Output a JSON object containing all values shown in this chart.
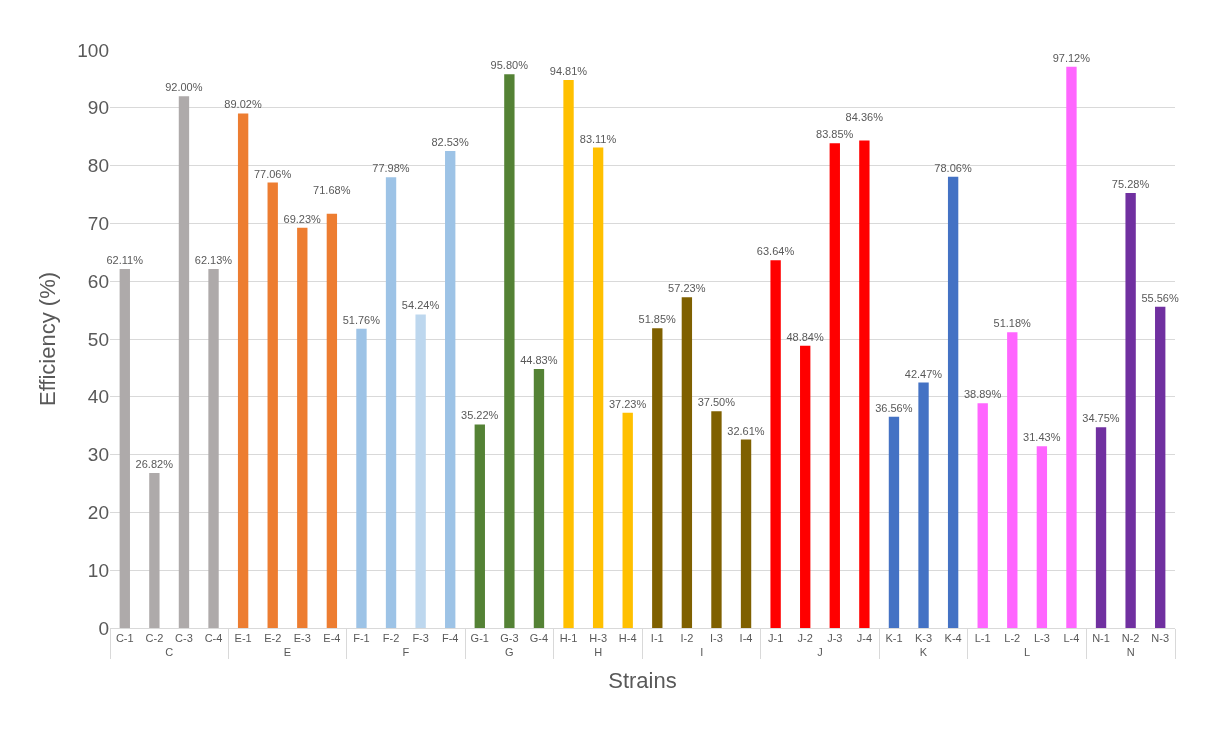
{
  "chart_data": {
    "type": "bar",
    "xlabel": "Strains",
    "ylabel": "Efficiency (%)",
    "categories": [
      "C-1",
      "C-2",
      "C-3",
      "C-4",
      "E-1",
      "E-2",
      "E-3",
      "E-4",
      "F-1",
      "F-2",
      "F-3",
      "F-4",
      "G-1",
      "G-3",
      "G-4",
      "H-1",
      "H-3",
      "H-4",
      "I-1",
      "I-2",
      "I-3",
      "I-4",
      "J-1",
      "J-2",
      "J-3",
      "J-4",
      "K-1",
      "K-3",
      "K-4",
      "L-1",
      "L-2",
      "L-3",
      "L-4",
      "N-1",
      "N-2",
      "N-3"
    ],
    "series": [
      {
        "name": "C",
        "color": "#aeaaaa",
        "values": [
          62.11,
          26.82,
          92.0,
          62.13,
          null,
          null,
          null,
          null,
          null,
          null,
          null,
          null,
          null,
          null,
          null,
          null,
          null,
          null,
          null,
          null,
          null,
          null,
          null,
          null,
          null,
          null,
          null,
          null,
          null,
          null,
          null,
          null,
          null,
          null,
          null,
          null
        ],
        "value_labels": [
          "62.11%",
          "26.82%",
          "92.00%",
          "62.13%",
          null,
          null,
          null,
          null,
          null,
          null,
          null,
          null,
          null,
          null,
          null,
          null,
          null,
          null,
          null,
          null,
          null,
          null,
          null,
          null,
          null,
          null,
          null,
          null,
          null,
          null,
          null,
          null,
          null,
          null,
          null,
          null
        ]
      },
      {
        "name": "E",
        "color": "#ed7d31",
        "values": [
          null,
          null,
          null,
          null,
          89.02,
          77.06,
          69.23,
          71.68,
          null,
          null,
          null,
          null,
          null,
          null,
          null,
          null,
          null,
          null,
          null,
          null,
          null,
          null,
          null,
          null,
          null,
          null,
          null,
          null,
          null,
          null,
          null,
          null,
          null,
          null,
          null,
          null
        ],
        "value_labels": [
          null,
          null,
          null,
          null,
          "89.02%",
          "77.06%",
          "69.23%",
          "71.68%",
          null,
          null,
          null,
          null,
          null,
          null,
          null,
          null,
          null,
          null,
          null,
          null,
          null,
          null,
          null,
          null,
          null,
          null,
          null,
          null,
          null,
          null,
          null,
          null,
          null,
          null,
          null,
          null
        ]
      },
      {
        "name": "F",
        "colors": [
          "#9dc3e6",
          "#9dc3e6",
          "#9dc3e6",
          "#9dc3e6",
          "#9dc3e6",
          "#9dc3e6",
          "#9dc3e6",
          "#9dc3e6",
          "#9dc3e6",
          "#9dc3e6",
          "#bdd7ee",
          "#9dc3e6",
          "#9dc3e6",
          "#9dc3e6",
          "#9dc3e6",
          "#9dc3e6",
          "#9dc3e6",
          "#9dc3e6",
          "#9dc3e6",
          "#9dc3e6",
          "#9dc3e6",
          "#9dc3e6",
          "#9dc3e6",
          "#9dc3e6",
          "#9dc3e6",
          "#9dc3e6",
          "#9dc3e6",
          "#9dc3e6",
          "#9dc3e6",
          "#9dc3e6",
          "#9dc3e6",
          "#9dc3e6",
          "#9dc3e6",
          "#9dc3e6",
          "#9dc3e6",
          "#9dc3e6"
        ],
        "values": [
          null,
          null,
          null,
          null,
          null,
          null,
          null,
          null,
          51.76,
          77.98,
          54.24,
          82.53,
          null,
          null,
          null,
          null,
          null,
          null,
          null,
          null,
          null,
          null,
          null,
          null,
          null,
          null,
          null,
          null,
          null,
          null,
          null,
          null,
          null,
          null,
          null,
          null
        ],
        "value_labels": [
          null,
          null,
          null,
          null,
          null,
          null,
          null,
          null,
          "51.76%",
          "77.98%",
          "54.24%",
          "82.53%",
          null,
          null,
          null,
          null,
          null,
          null,
          null,
          null,
          null,
          null,
          null,
          null,
          null,
          null,
          null,
          null,
          null,
          null,
          null,
          null,
          null,
          null,
          null,
          null
        ]
      },
      {
        "name": "G",
        "color": "#548235",
        "values": [
          null,
          null,
          null,
          null,
          null,
          null,
          null,
          null,
          null,
          null,
          null,
          null,
          35.22,
          95.8,
          44.83,
          null,
          null,
          null,
          null,
          null,
          null,
          null,
          null,
          null,
          null,
          null,
          null,
          null,
          null,
          null,
          null,
          null,
          null,
          null,
          null,
          null
        ],
        "value_labels": [
          null,
          null,
          null,
          null,
          null,
          null,
          null,
          null,
          null,
          null,
          null,
          null,
          "35.22%",
          "95.80%",
          "44.83%",
          null,
          null,
          null,
          null,
          null,
          null,
          null,
          null,
          null,
          null,
          null,
          null,
          null,
          null,
          null,
          null,
          null,
          null,
          null,
          null,
          null
        ]
      },
      {
        "name": "H",
        "color": "#ffc000",
        "values": [
          null,
          null,
          null,
          null,
          null,
          null,
          null,
          null,
          null,
          null,
          null,
          null,
          null,
          null,
          null,
          94.81,
          83.11,
          37.23,
          null,
          null,
          null,
          null,
          null,
          null,
          null,
          null,
          null,
          null,
          null,
          null,
          null,
          null,
          null,
          null,
          null,
          null
        ],
        "value_labels": [
          null,
          null,
          null,
          null,
          null,
          null,
          null,
          null,
          null,
          null,
          null,
          null,
          null,
          null,
          null,
          "94.81%",
          "83.11%",
          "37.23%",
          null,
          null,
          null,
          null,
          null,
          null,
          null,
          null,
          null,
          null,
          null,
          null,
          null,
          null,
          null,
          null,
          null,
          null
        ]
      },
      {
        "name": "I",
        "color": "#7f6000",
        "values": [
          null,
          null,
          null,
          null,
          null,
          null,
          null,
          null,
          null,
          null,
          null,
          null,
          null,
          null,
          null,
          null,
          null,
          null,
          51.85,
          57.23,
          37.5,
          32.61,
          null,
          null,
          null,
          null,
          null,
          null,
          null,
          null,
          null,
          null,
          null,
          null,
          null,
          null
        ],
        "value_labels": [
          null,
          null,
          null,
          null,
          null,
          null,
          null,
          null,
          null,
          null,
          null,
          null,
          null,
          null,
          null,
          null,
          null,
          null,
          "51.85%",
          "57.23%",
          "37.50%",
          "32.61%",
          null,
          null,
          null,
          null,
          null,
          null,
          null,
          null,
          null,
          null,
          null,
          null,
          null,
          null
        ]
      },
      {
        "name": "J",
        "color": "#ff0000",
        "values": [
          null,
          null,
          null,
          null,
          null,
          null,
          null,
          null,
          null,
          null,
          null,
          null,
          null,
          null,
          null,
          null,
          null,
          null,
          null,
          null,
          null,
          null,
          63.64,
          48.84,
          83.85,
          84.36,
          null,
          null,
          null,
          null,
          null,
          null,
          null,
          null,
          null,
          null
        ],
        "value_labels": [
          null,
          null,
          null,
          null,
          null,
          null,
          null,
          null,
          null,
          null,
          null,
          null,
          null,
          null,
          null,
          null,
          null,
          null,
          null,
          null,
          null,
          null,
          "63.64%",
          "48.84%",
          "83.85%",
          "84.36%",
          null,
          null,
          null,
          null,
          null,
          null,
          null,
          null,
          null,
          null
        ]
      },
      {
        "name": "K",
        "color": "#4472c4",
        "values": [
          null,
          null,
          null,
          null,
          null,
          null,
          null,
          null,
          null,
          null,
          null,
          null,
          null,
          null,
          null,
          null,
          null,
          null,
          null,
          null,
          null,
          null,
          null,
          null,
          null,
          null,
          36.56,
          42.47,
          78.06,
          null,
          null,
          null,
          null,
          null,
          null,
          null
        ],
        "value_labels": [
          null,
          null,
          null,
          null,
          null,
          null,
          null,
          null,
          null,
          null,
          null,
          null,
          null,
          null,
          null,
          null,
          null,
          null,
          null,
          null,
          null,
          null,
          null,
          null,
          null,
          null,
          "36.56%",
          "42.47%",
          "78.06%",
          null,
          null,
          null,
          null,
          null,
          null,
          null
        ]
      },
      {
        "name": "L",
        "color": "#ff66ff",
        "values": [
          null,
          null,
          null,
          null,
          null,
          null,
          null,
          null,
          null,
          null,
          null,
          null,
          null,
          null,
          null,
          null,
          null,
          null,
          null,
          null,
          null,
          null,
          null,
          null,
          null,
          null,
          null,
          null,
          null,
          38.89,
          51.18,
          31.43,
          97.12,
          null,
          null,
          null
        ],
        "value_labels": [
          null,
          null,
          null,
          null,
          null,
          null,
          null,
          null,
          null,
          null,
          null,
          null,
          null,
          null,
          null,
          null,
          null,
          null,
          null,
          null,
          null,
          null,
          null,
          null,
          null,
          null,
          null,
          null,
          null,
          "38.89%",
          "51.18%",
          "31.43%",
          "97.12%",
          null,
          null,
          null
        ]
      },
      {
        "name": "N",
        "color": "#7030a0",
        "values": [
          null,
          null,
          null,
          null,
          null,
          null,
          null,
          null,
          null,
          null,
          null,
          null,
          null,
          null,
          null,
          null,
          null,
          null,
          null,
          null,
          null,
          null,
          null,
          null,
          null,
          null,
          null,
          null,
          null,
          null,
          null,
          null,
          null,
          34.75,
          75.28,
          55.56
        ],
        "value_labels": [
          null,
          null,
          null,
          null,
          null,
          null,
          null,
          null,
          null,
          null,
          null,
          null,
          null,
          null,
          null,
          null,
          null,
          null,
          null,
          null,
          null,
          null,
          null,
          null,
          null,
          null,
          null,
          null,
          null,
          null,
          null,
          null,
          null,
          "34.75%",
          "75.28%",
          "55.56%"
        ]
      }
    ],
    "ylim": [
      0,
      100
    ],
    "yticks": [
      0,
      10,
      20,
      30,
      40,
      50,
      60,
      70,
      80,
      90,
      100
    ],
    "grid": "y"
  }
}
